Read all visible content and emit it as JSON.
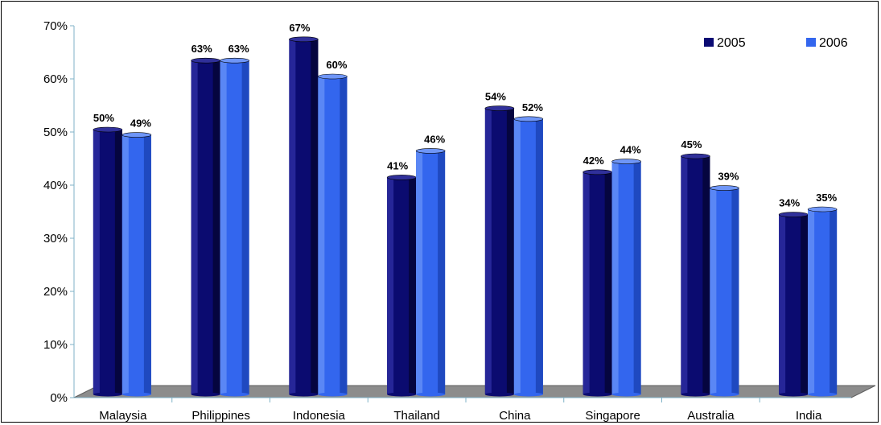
{
  "chart_data": {
    "type": "bar",
    "title": "",
    "xlabel": "",
    "ylabel": "",
    "ylim": [
      0,
      70
    ],
    "yticks": [
      "0%",
      "10%",
      "20%",
      "30%",
      "40%",
      "50%",
      "60%",
      "70%"
    ],
    "categories": [
      "Malaysia",
      "Philippines",
      "Indonesia",
      "Thailand",
      "China",
      "Singapore",
      "Australia",
      "India"
    ],
    "series": [
      {
        "name": "2005",
        "color": "#0a0a73",
        "values": [
          50,
          63,
          67,
          41,
          54,
          42,
          45,
          34
        ],
        "labels": [
          "50%",
          "63%",
          "67%",
          "41%",
          "54%",
          "42%",
          "45%",
          "34%"
        ]
      },
      {
        "name": "2006",
        "color": "#3366ee",
        "values": [
          49,
          63,
          60,
          46,
          52,
          44,
          39,
          35
        ],
        "labels": [
          "49%",
          "63%",
          "60%",
          "46%",
          "52%",
          "44%",
          "39%",
          "35%"
        ]
      }
    ],
    "legend": "top-right",
    "grid": false,
    "floor_color": "#8c8c8c"
  }
}
